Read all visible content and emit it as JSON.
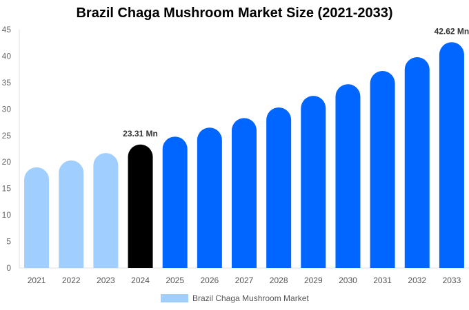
{
  "chart_data": {
    "type": "bar",
    "title": "Brazil Chaga Mushroom Market Size (2021-2033)",
    "categories": [
      "2021",
      "2022",
      "2023",
      "2024",
      "2025",
      "2026",
      "2027",
      "2028",
      "2029",
      "2030",
      "2031",
      "2032",
      "2033"
    ],
    "series": [
      {
        "name": "Brazil Chaga Mushroom Market",
        "values": [
          19.0,
          20.3,
          21.7,
          23.31,
          24.8,
          26.5,
          28.3,
          30.3,
          32.5,
          34.7,
          37.2,
          39.8,
          42.62
        ]
      }
    ],
    "data_labels": {
      "2024": "23.31 Mn",
      "2033": "42.62 Mn"
    },
    "ylim": [
      0,
      45
    ],
    "yticks": [
      0,
      5,
      10,
      15,
      20,
      25,
      30,
      35,
      40,
      45
    ],
    "xlabel": "",
    "ylabel": "",
    "grid": false,
    "legend": "bottom",
    "colors": {
      "historical": "#a0cfff",
      "base_year": "#000000",
      "forecast": "#0066ff"
    }
  }
}
